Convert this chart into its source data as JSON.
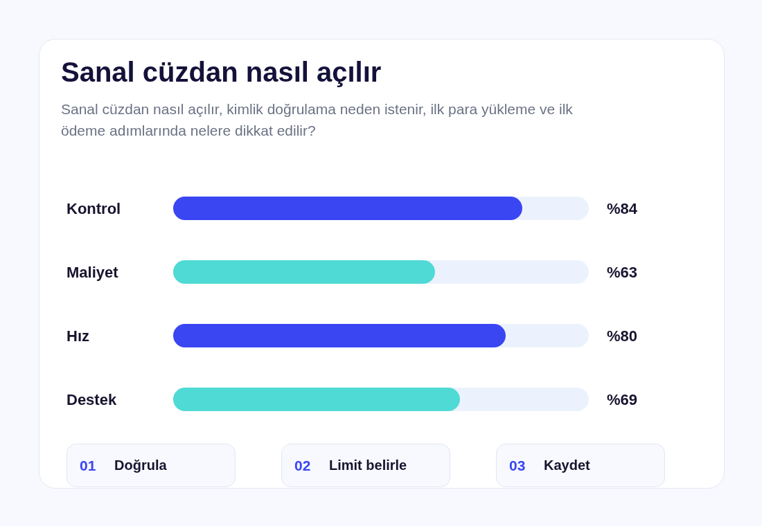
{
  "chart_data": {
    "type": "bar",
    "orientation": "horizontal",
    "title": "Sanal cüzdan nasıl açılır",
    "subtitle": "Sanal cüzdan nasıl açılır, kimlik doğrulama neden istenir, ilk para yükleme ve ilk ödeme adımlarında nelere dikkat edilir?",
    "categories": [
      "Kontrol",
      "Maliyet",
      "Hız",
      "Destek"
    ],
    "values": [
      84,
      63,
      80,
      69
    ],
    "colors": [
      "#3a46f2",
      "#4fdad5",
      "#3a46f2",
      "#4fdad5"
    ],
    "value_labels": [
      "%84",
      "%63",
      "%80",
      "%69"
    ],
    "xlim": [
      0,
      100
    ],
    "tick_labels": "y",
    "annotations": [
      "01",
      "Doğrula",
      "02",
      "Limit belirle",
      "03",
      "Kaydet"
    ]
  }
}
